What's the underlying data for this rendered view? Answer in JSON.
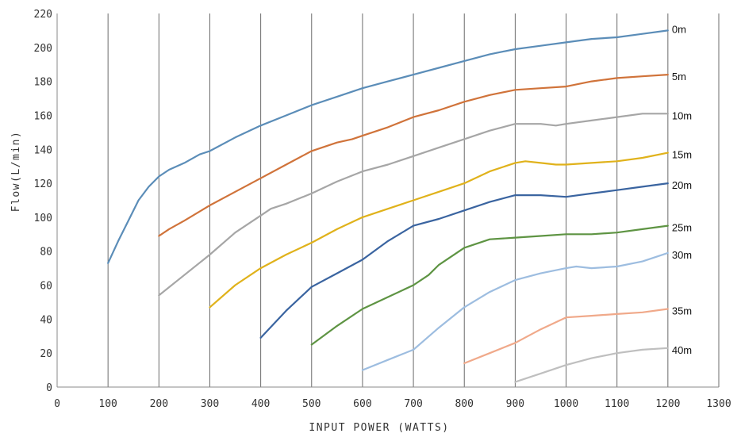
{
  "chart_data": {
    "type": "line",
    "title": "",
    "xlabel": "INPUT POWER (WATTS)",
    "ylabel": "Flow(L/min)",
    "xlim": [
      0,
      1300
    ],
    "ylim": [
      0,
      220
    ],
    "x_ticks": [
      "0",
      "100",
      "200",
      "300",
      "400",
      "500",
      "600",
      "700",
      "800",
      "900",
      "1000",
      "1100",
      "1200",
      "1300"
    ],
    "y_ticks": [
      "0",
      "20",
      "40",
      "60",
      "80",
      "100",
      "120",
      "140",
      "160",
      "180",
      "200",
      "220"
    ],
    "grid": "vertical",
    "legend": "inline-right",
    "series": [
      {
        "name": "0m",
        "color": "#5b8db8",
        "points": [
          [
            100,
            73
          ],
          [
            120,
            86
          ],
          [
            140,
            98
          ],
          [
            160,
            110
          ],
          [
            180,
            118
          ],
          [
            200,
            124
          ],
          [
            220,
            128
          ],
          [
            250,
            132
          ],
          [
            280,
            137
          ],
          [
            300,
            139
          ],
          [
            350,
            147
          ],
          [
            400,
            154
          ],
          [
            450,
            160
          ],
          [
            500,
            166
          ],
          [
            550,
            171
          ],
          [
            600,
            176
          ],
          [
            650,
            180
          ],
          [
            700,
            184
          ],
          [
            750,
            188
          ],
          [
            800,
            192
          ],
          [
            850,
            196
          ],
          [
            900,
            199
          ],
          [
            950,
            201
          ],
          [
            1000,
            203
          ],
          [
            1050,
            205
          ],
          [
            1100,
            206
          ],
          [
            1150,
            208
          ],
          [
            1200,
            210
          ]
        ]
      },
      {
        "name": "5m",
        "color": "#d0733a",
        "points": [
          [
            200,
            89
          ],
          [
            220,
            93
          ],
          [
            250,
            98
          ],
          [
            300,
            107
          ],
          [
            350,
            115
          ],
          [
            400,
            123
          ],
          [
            450,
            131
          ],
          [
            500,
            139
          ],
          [
            550,
            144
          ],
          [
            580,
            146
          ],
          [
            600,
            148
          ],
          [
            650,
            153
          ],
          [
            700,
            159
          ],
          [
            750,
            163
          ],
          [
            800,
            168
          ],
          [
            850,
            172
          ],
          [
            900,
            175
          ],
          [
            950,
            176
          ],
          [
            1000,
            177
          ],
          [
            1050,
            180
          ],
          [
            1100,
            182
          ],
          [
            1150,
            183
          ],
          [
            1200,
            184
          ]
        ]
      },
      {
        "name": "10m",
        "color": "#a6a6a6",
        "points": [
          [
            200,
            54
          ],
          [
            250,
            66
          ],
          [
            300,
            78
          ],
          [
            350,
            91
          ],
          [
            400,
            101
          ],
          [
            420,
            105
          ],
          [
            450,
            108
          ],
          [
            500,
            114
          ],
          [
            550,
            121
          ],
          [
            600,
            127
          ],
          [
            650,
            131
          ],
          [
            700,
            136
          ],
          [
            750,
            141
          ],
          [
            800,
            146
          ],
          [
            850,
            151
          ],
          [
            900,
            155
          ],
          [
            950,
            155
          ],
          [
            980,
            154
          ],
          [
            1000,
            155
          ],
          [
            1050,
            157
          ],
          [
            1100,
            159
          ],
          [
            1150,
            161
          ],
          [
            1200,
            161
          ]
        ]
      },
      {
        "name": "15m",
        "color": "#e0b21b",
        "points": [
          [
            300,
            47
          ],
          [
            350,
            60
          ],
          [
            400,
            70
          ],
          [
            450,
            78
          ],
          [
            500,
            85
          ],
          [
            550,
            93
          ],
          [
            600,
            100
          ],
          [
            650,
            105
          ],
          [
            700,
            110
          ],
          [
            750,
            115
          ],
          [
            800,
            120
          ],
          [
            850,
            127
          ],
          [
            900,
            132
          ],
          [
            920,
            133
          ],
          [
            950,
            132
          ],
          [
            980,
            131
          ],
          [
            1000,
            131
          ],
          [
            1050,
            132
          ],
          [
            1100,
            133
          ],
          [
            1150,
            135
          ],
          [
            1200,
            138
          ]
        ]
      },
      {
        "name": "20m",
        "color": "#3a64a0",
        "points": [
          [
            400,
            29
          ],
          [
            450,
            45
          ],
          [
            500,
            59
          ],
          [
            550,
            67
          ],
          [
            600,
            75
          ],
          [
            650,
            86
          ],
          [
            700,
            95
          ],
          [
            750,
            99
          ],
          [
            800,
            104
          ],
          [
            850,
            109
          ],
          [
            900,
            113
          ],
          [
            950,
            113
          ],
          [
            1000,
            112
          ],
          [
            1050,
            114
          ],
          [
            1100,
            116
          ],
          [
            1150,
            118
          ],
          [
            1200,
            120
          ]
        ]
      },
      {
        "name": "25m",
        "color": "#5e9443",
        "points": [
          [
            500,
            25
          ],
          [
            550,
            36
          ],
          [
            600,
            46
          ],
          [
            650,
            53
          ],
          [
            700,
            60
          ],
          [
            730,
            66
          ],
          [
            750,
            72
          ],
          [
            800,
            82
          ],
          [
            850,
            87
          ],
          [
            900,
            88
          ],
          [
            950,
            89
          ],
          [
            1000,
            90
          ],
          [
            1050,
            90
          ],
          [
            1100,
            91
          ],
          [
            1150,
            93
          ],
          [
            1200,
            95
          ]
        ]
      },
      {
        "name": "30m",
        "color": "#9dbde0",
        "points": [
          [
            600,
            10
          ],
          [
            650,
            16
          ],
          [
            700,
            22
          ],
          [
            750,
            35
          ],
          [
            800,
            47
          ],
          [
            850,
            56
          ],
          [
            900,
            63
          ],
          [
            950,
            67
          ],
          [
            1000,
            70
          ],
          [
            1020,
            71
          ],
          [
            1050,
            70
          ],
          [
            1100,
            71
          ],
          [
            1150,
            74
          ],
          [
            1200,
            79
          ]
        ]
      },
      {
        "name": "35m",
        "color": "#f0a98a",
        "points": [
          [
            800,
            14
          ],
          [
            850,
            20
          ],
          [
            900,
            26
          ],
          [
            950,
            34
          ],
          [
            1000,
            41
          ],
          [
            1050,
            42
          ],
          [
            1100,
            43
          ],
          [
            1150,
            44
          ],
          [
            1200,
            46
          ]
        ]
      },
      {
        "name": "40m",
        "color": "#bfbfbf",
        "points": [
          [
            900,
            3
          ],
          [
            950,
            8
          ],
          [
            1000,
            13
          ],
          [
            1050,
            17
          ],
          [
            1100,
            20
          ],
          [
            1150,
            22
          ],
          [
            1200,
            23
          ]
        ]
      }
    ]
  }
}
